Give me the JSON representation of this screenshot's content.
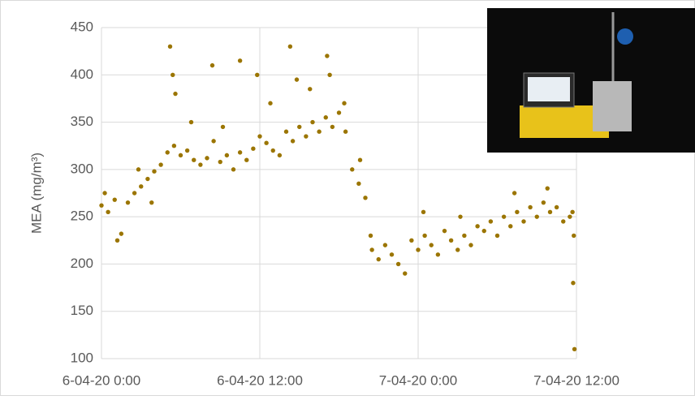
{
  "chart_data": {
    "type": "scatter",
    "y_label": "MEA (mg/m³)",
    "color": "#9b7500",
    "grid": true,
    "xlim": [
      0,
      36
    ],
    "ylim": [
      100,
      450
    ],
    "xticks": [
      {
        "value": 0,
        "label": "6-04-20 0:00"
      },
      {
        "value": 12,
        "label": "6-04-20 12:00"
      },
      {
        "value": 24,
        "label": "7-04-20 0:00"
      },
      {
        "value": 36,
        "label": "7-04-20 12:00"
      }
    ],
    "yticks": [
      100,
      150,
      200,
      250,
      300,
      350,
      400,
      450
    ],
    "x": [
      0,
      0.5,
      1,
      1.5,
      2,
      2.5,
      3,
      3.5,
      4,
      4.5,
      5,
      5.5,
      6,
      6.5,
      7,
      7.5,
      8,
      8.5,
      9,
      9.5,
      10,
      10.5,
      11,
      11.5,
      12,
      12.5,
      13,
      13.5,
      14,
      14.5,
      15,
      15.5,
      16,
      16.5,
      17,
      17.5,
      18,
      18.5,
      19,
      19.5,
      20,
      20.5,
      21,
      21.5,
      22,
      22.5,
      23,
      23.5,
      24,
      24.5,
      25,
      25.5,
      26,
      26.5,
      27,
      27.5,
      28,
      28.5,
      29,
      29.5,
      30,
      30.5,
      31,
      31.5,
      32,
      32.5,
      33,
      33.5,
      34,
      34.5,
      35,
      35.5,
      0.25,
      1.2,
      2.8,
      3.8,
      5.2,
      5.4,
      5.6,
      6.8,
      8.4,
      9.2,
      10.5,
      11.8,
      12.8,
      14.3,
      14.8,
      15.8,
      17.1,
      17.3,
      18.4,
      19.6,
      20.4,
      24.4,
      27.2,
      31.3,
      33.8,
      35.7,
      35.8,
      35.75,
      35.85
    ],
    "values": [
      262,
      255,
      268,
      232,
      265,
      275,
      282,
      290,
      298,
      305,
      318,
      325,
      315,
      320,
      310,
      305,
      312,
      330,
      308,
      315,
      300,
      318,
      310,
      322,
      335,
      328,
      320,
      315,
      340,
      330,
      345,
      335,
      350,
      340,
      355,
      345,
      360,
      340,
      300,
      285,
      270,
      215,
      205,
      220,
      210,
      200,
      190,
      225,
      215,
      230,
      220,
      210,
      235,
      225,
      215,
      230,
      220,
      240,
      235,
      245,
      230,
      250,
      240,
      255,
      245,
      260,
      250,
      265,
      255,
      260,
      245,
      250,
      275,
      225,
      300,
      265,
      430,
      400,
      380,
      350,
      410,
      345,
      415,
      400,
      370,
      430,
      395,
      385,
      420,
      400,
      370,
      310,
      230,
      255,
      250,
      275,
      280,
      255,
      230,
      180,
      110
    ]
  }
}
